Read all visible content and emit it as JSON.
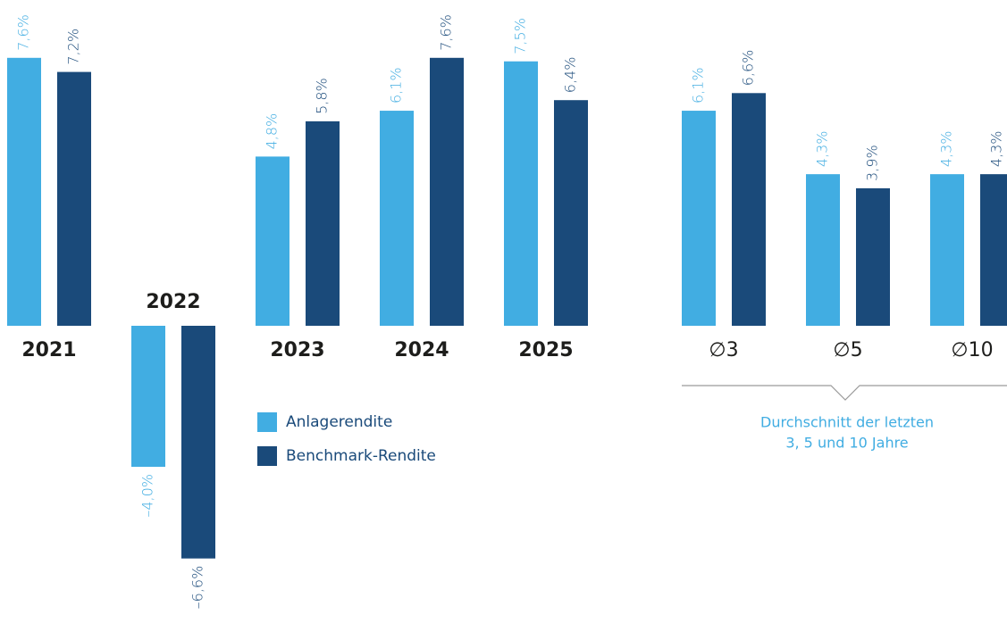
{
  "chart_data": {
    "type": "bar",
    "categories": [
      "2021",
      "2022",
      "2023",
      "2024",
      "2025",
      "∅3",
      "∅5",
      "∅10"
    ],
    "series": [
      {
        "name": "Anlagerendite",
        "color": "#41ade2",
        "values": [
          7.6,
          -4.0,
          4.8,
          6.1,
          7.5,
          6.1,
          4.3,
          4.3
        ],
        "value_labels": [
          "7,6%",
          "–4,0%",
          "4,8%",
          "6,1%",
          "7,5%",
          "6,1%",
          "4,3%",
          "4,3%"
        ]
      },
      {
        "name": "Benchmark-Rendite",
        "color": "#1a4a7a",
        "values": [
          7.2,
          -6.6,
          5.8,
          7.6,
          6.4,
          6.6,
          3.9,
          4.3
        ],
        "value_labels": [
          "7,2%",
          "–6,6%",
          "5,8%",
          "7,6%",
          "6,4%",
          "6,6%",
          "3,9%",
          "4,3%"
        ]
      }
    ],
    "ylim": [
      -8,
      8
    ],
    "annotation": [
      "Durchschnitt der letzten",
      "3, 5 und 10 Jahre"
    ]
  }
}
